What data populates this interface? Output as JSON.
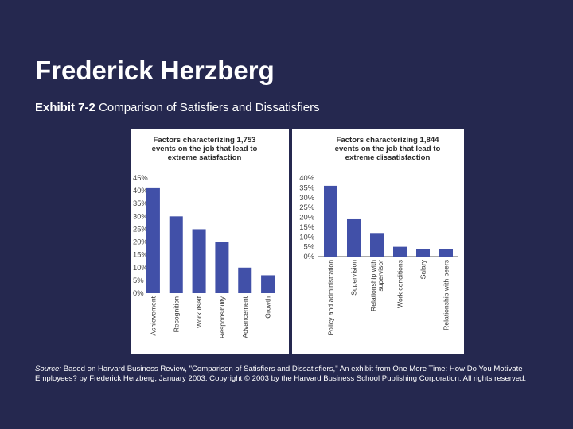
{
  "slide": {
    "title": "Frederick Herzberg",
    "exhibit_number": "Exhibit 7-2",
    "exhibit_title": "Comparison of Satisfiers and Dissatisfiers",
    "source_label": "Source:",
    "source_text": "Based on Harvard Business Review, \"Comparison of Satisfiers and Dissatisfiers,\" An exhibit from One More Time: How Do You Motivate Employees? by Frederick Herzberg, January 2003. Copyright © 2003 by the Harvard Business School Publishing Corporation. All rights reserved.",
    "background_color": "#25284f",
    "bar_color": "#4150a8"
  },
  "chart_data": [
    {
      "type": "bar",
      "title": [
        "Factors characterizing 1,753",
        "events on the job that lead to",
        "extreme satisfaction"
      ],
      "categories": [
        "Achievement",
        "Recognition",
        "Work itself",
        "Responsibility",
        "Advancement",
        "Growth"
      ],
      "values": [
        41,
        30,
        25,
        20,
        10,
        7
      ],
      "ylim": [
        0,
        45
      ],
      "yticks": [
        "0%",
        "5%",
        "10%",
        "15%",
        "20%",
        "25%",
        "30%",
        "35%",
        "40%",
        "45%"
      ],
      "grid": false
    },
    {
      "type": "bar",
      "title": [
        "Factors characterizing 1,844",
        "events on the job that lead to",
        "extreme dissatisfaction"
      ],
      "categories": [
        "Policy and administration",
        "Supervision",
        [
          "Relationship with",
          "supervisor"
        ],
        "Work conditions",
        "Salary",
        "Relationship with peers"
      ],
      "values": [
        36,
        19,
        12,
        5,
        4,
        4
      ],
      "ylim": [
        0,
        40
      ],
      "yticks": [
        "0%",
        "5%",
        "10%",
        "15%",
        "20%",
        "25%",
        "30%",
        "35%",
        "40%"
      ],
      "grid": false
    }
  ]
}
